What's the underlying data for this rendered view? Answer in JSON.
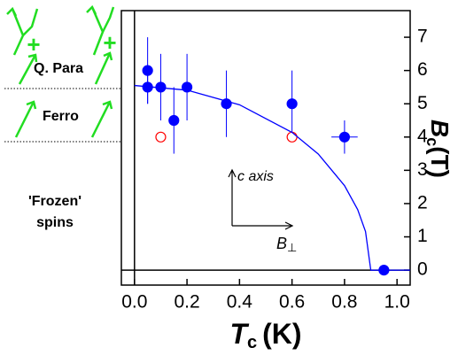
{
  "chart_data": {
    "type": "scatter",
    "xlabel": {
      "main": "T",
      "sub": "c",
      "unit": "(K)"
    },
    "ylabel": {
      "main": "B",
      "sub": "c",
      "unit": "(T)"
    },
    "xlim": [
      -0.05,
      1.05
    ],
    "xticks": [
      {
        "value": 0,
        "label": "0.0"
      },
      {
        "value": 0.2,
        "label": "0.2"
      },
      {
        "value": 0.4,
        "label": "0.4"
      },
      {
        "value": 0.6,
        "label": "0.6"
      },
      {
        "value": 0.8,
        "label": "0.8"
      },
      {
        "value": 1,
        "label": "1.0"
      }
    ],
    "ylim": [
      -0.45,
      7.8
    ],
    "yticks": [
      0,
      1,
      2,
      3,
      4,
      5,
      6,
      7
    ],
    "series": [
      {
        "marker": "filled",
        "color": "#0000ff",
        "x": [
          0.05,
          0.05,
          0.1,
          0.15,
          0.2,
          0.35,
          0.6,
          0.8,
          0.95
        ],
        "values": [
          6,
          5.5,
          5.5,
          4.5,
          5.5,
          5,
          5,
          4,
          0
        ],
        "yerr": [
          1,
          0.5,
          1,
          1,
          1,
          1,
          1,
          0.5,
          null
        ],
        "xerr": [
          null,
          null,
          null,
          null,
          null,
          null,
          null,
          0.05,
          0.05
        ]
      },
      {
        "marker": "open",
        "color": "#ff0000",
        "x": [
          0.1,
          0.6
        ],
        "values": [
          4,
          4
        ]
      },
      {
        "marker": "line",
        "color": "#0000ff",
        "x": [
          0,
          0.2,
          0.4,
          0.6,
          0.7,
          0.8,
          0.85,
          0.88,
          0.9,
          1.05
        ],
        "values": [
          5.55,
          5.41,
          4.97,
          4.14,
          3.49,
          2.54,
          1.82,
          1.16,
          0,
          0
        ]
      }
    ],
    "annotations": {
      "c_axis": "c axis",
      "b_perp": {
        "main": "B",
        "sub": "⊥"
      }
    },
    "phases": {
      "q_para": "Q. Para",
      "ferro": "Ferro",
      "frozen_1": "'Frozen'",
      "frozen_2": "spins",
      "plus": "+"
    }
  }
}
